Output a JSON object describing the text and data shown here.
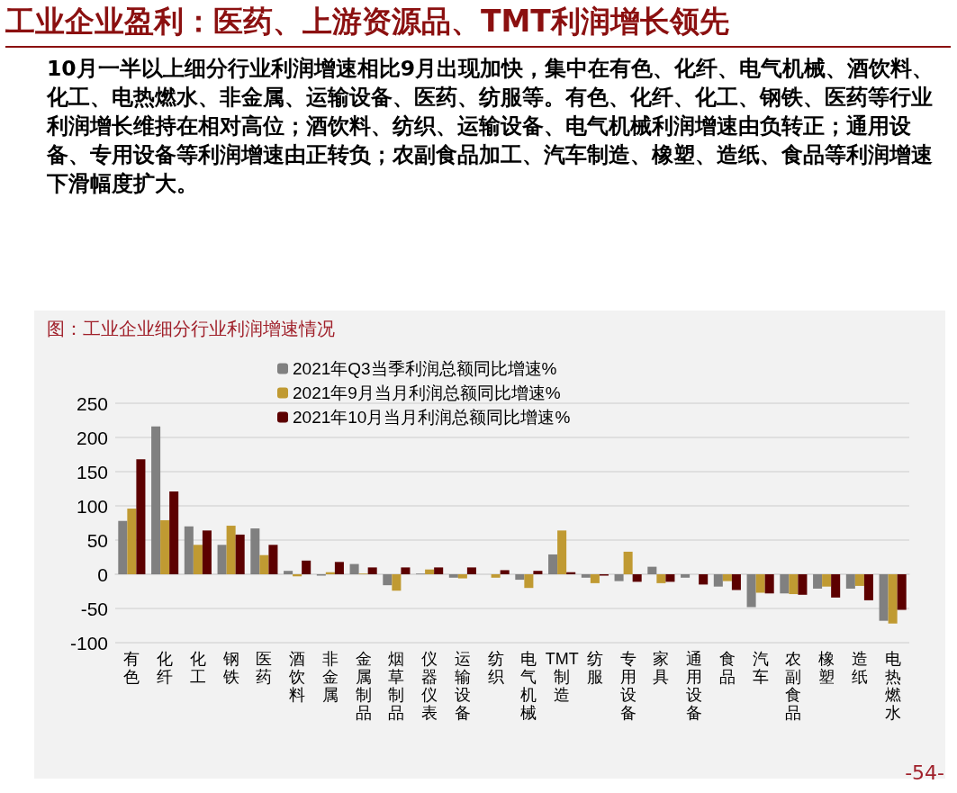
{
  "chart_data": {
    "type": "bar",
    "title": "工业企业盈利：医药、上游资源品、TMT利润增长领先",
    "subtitle": "10月一半以上细分行业利润增速相比9月出现加快，集中在有色、化纤、电气机械、酒饮料、化工、电热燃水、非金属、运输设备、医药、纺服等。有色、化纤、化工、钢铁、医药等行业利润增长维持在相对高位；酒饮料、纺织、运输设备、电气机械利润增速由负转正；通用设备、专用设备等利润增速由正转负；农副食品加工、汽车制造、橡塑、造纸、食品等利润增速下滑幅度扩大。",
    "annotations": [
      "图：工业企业细分行业利润增速情况",
      "-54-"
    ],
    "categories": [
      "有色",
      "化纤",
      "化工",
      "钢铁",
      "医药",
      "酒饮料",
      "非金属",
      "金属制品",
      "烟草制品",
      "仪器仪表",
      "运输设备",
      "纺织",
      "电气机械",
      "TMT制造",
      "纺服",
      "专用设备",
      "家具",
      "通用设备",
      "食品",
      "汽车",
      "农副食品",
      "橡塑",
      "造纸",
      "电热燃水"
    ],
    "series": [
      {
        "name": "2021年Q3当季利润总额同比增速%",
        "color": "#808080",
        "values": [
          78,
          216,
          70,
          43,
          67,
          5,
          -2,
          15,
          -16,
          1,
          -5,
          0,
          -8,
          29,
          -5,
          -10,
          11,
          -5,
          -18,
          -48,
          -28,
          -21,
          -21,
          -68
        ]
      },
      {
        "name": "2021年9月当月利润总额同比增速%",
        "color": "#c09a32",
        "values": [
          96,
          79,
          43,
          71,
          28,
          -3,
          3,
          1,
          -24,
          7,
          -6,
          -5,
          -20,
          64,
          -13,
          33,
          -13,
          0,
          -10,
          -27,
          -29,
          -18,
          -17,
          -72
        ]
      },
      {
        "name": "2021年10月当月利润总额同比增速%",
        "color": "#5c0000",
        "values": [
          168,
          121,
          64,
          58,
          43,
          20,
          18,
          10,
          10,
          10,
          10,
          6,
          5,
          3,
          -2,
          -11,
          -11,
          -15,
          -23,
          -28,
          -30,
          -34,
          -38,
          -52
        ]
      }
    ],
    "ylim": [
      -100,
      250
    ],
    "yticks": [
      -100,
      -50,
      0,
      50,
      100,
      150,
      200,
      250
    ],
    "grid": "y",
    "legend": "top left"
  }
}
